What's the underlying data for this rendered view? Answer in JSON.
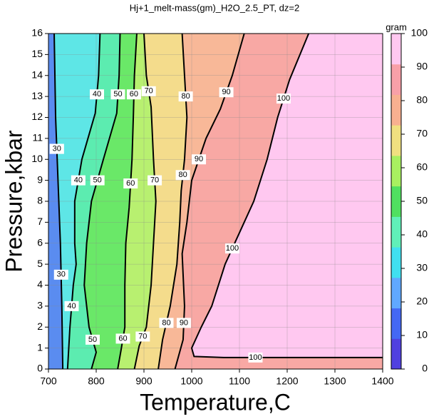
{
  "chart_data": {
    "type": "contour",
    "title": "Hj+1_melt-mass(gm)_H2O_2.5_PT, dz=2",
    "x_label": "Temperature,C",
    "y_label": "Pressure,kbar",
    "xlim": [
      700,
      1400
    ],
    "xticks": [
      700,
      800,
      900,
      1000,
      1100,
      1200,
      1300,
      1400
    ],
    "ylim": [
      0,
      16
    ],
    "yticks": [
      0,
      1,
      2,
      3,
      4,
      5,
      6,
      7,
      8,
      9,
      10,
      11,
      12,
      13,
      14,
      15,
      16
    ],
    "grid": true,
    "background": "#5a8cf0",
    "contours": [
      {
        "level": 30,
        "fill": "#5ee6e6",
        "x": [
          730,
          728,
          725,
          720,
          715,
          712
        ],
        "y": [
          0,
          3,
          6,
          9,
          12,
          16
        ]
      },
      {
        "level": 40,
        "fill": "#5cecb0",
        "x": [
          740,
          745,
          752,
          758,
          755,
          755,
          770,
          798,
          805,
          808
        ],
        "y": [
          0,
          2,
          4,
          5,
          6,
          8,
          10,
          12.2,
          14,
          16
        ]
      },
      {
        "level": 50,
        "fill": "#6ae868",
        "x": [
          790,
          800,
          785,
          775,
          780,
          790,
          815,
          843,
          848,
          850
        ],
        "y": [
          0,
          0.8,
          2,
          4,
          6,
          8,
          10,
          12.2,
          14,
          16
        ]
      },
      {
        "level": 60,
        "fill": "#b8f070",
        "x": [
          845,
          852,
          860,
          860,
          862,
          869,
          875,
          878,
          880,
          885
        ],
        "y": [
          0,
          0.9,
          2,
          4,
          6,
          7.7,
          10,
          12.2,
          14,
          16
        ]
      },
      {
        "level": 70,
        "fill": "#f4dc8c",
        "x": [
          880,
          890,
          905,
          915,
          920,
          925,
          920,
          915,
          905,
          900
        ],
        "y": [
          0,
          1.1,
          2,
          4,
          6,
          8,
          10,
          12.5,
          14,
          16
        ]
      },
      {
        "level": 80,
        "fill": "#f8b898",
        "x": [
          930,
          939,
          955,
          969,
          975,
          978,
          985,
          990,
          985,
          980
        ],
        "y": [
          0,
          1.4,
          3,
          5,
          7,
          8.5,
          10,
          12,
          14,
          16
        ]
      },
      {
        "level": 90,
        "fill": "#f8a8a4",
        "x": [
          965,
          982,
          985,
          980,
          990,
          1000,
          1030,
          1060,
          1085,
          1110
        ],
        "y": [
          0,
          1.4,
          3,
          5.5,
          7,
          9,
          11,
          12.4,
          14,
          16
        ]
      },
      {
        "level": 100,
        "fill": "#ffc8f0",
        "x": [
          1400,
          1200,
          1067,
          1005,
          1000,
          1020,
          1042,
          1070,
          1100,
          1130,
          1158,
          1180,
          1205,
          1245
        ],
        "y": [
          0.55,
          0.55,
          0.55,
          0.6,
          1,
          2,
          3,
          5,
          6.5,
          8,
          10,
          12,
          13.8,
          16
        ]
      }
    ],
    "colorbar": {
      "label": "gram",
      "lim": [
        0,
        100
      ],
      "ticks": [
        0,
        10,
        20,
        30,
        40,
        50,
        60,
        70,
        80,
        90,
        100
      ],
      "colors": [
        "#5040e0",
        "#4468f4",
        "#60a8ff",
        "#40e0f0",
        "#60f0b8",
        "#50e060",
        "#a8f060",
        "#f0e080",
        "#f8b090",
        "#f8a0a8",
        "#ffc8f0"
      ]
    }
  }
}
